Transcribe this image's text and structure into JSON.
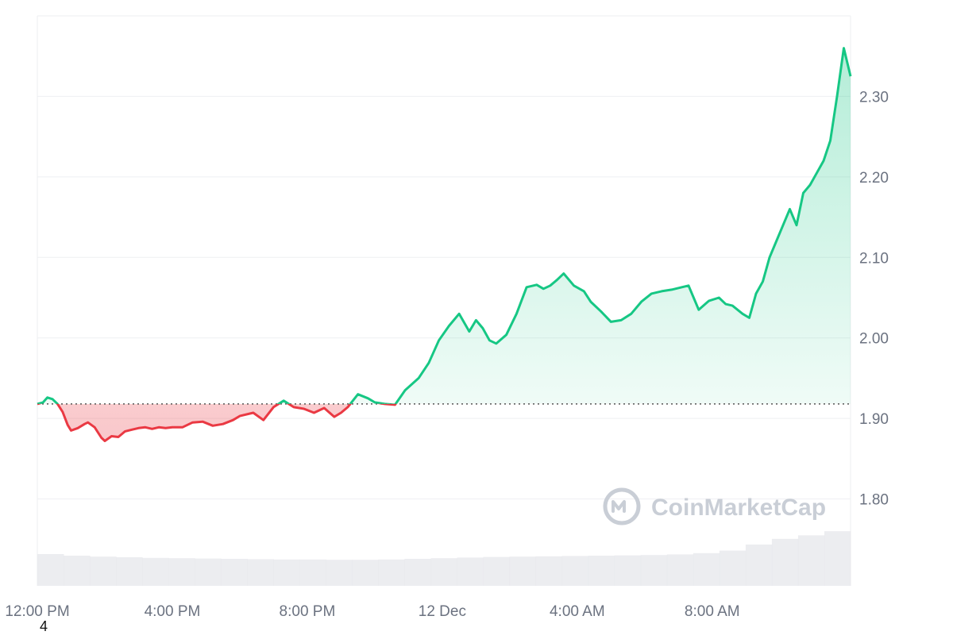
{
  "chart_data": {
    "type": "area",
    "title": "",
    "xlabel": "",
    "ylabel": "",
    "ylim": [
      1.7,
      2.4
    ],
    "y_ticks": [
      "1.80",
      "1.90",
      "2.00",
      "2.10",
      "2.20",
      "2.30"
    ],
    "y_tick_values": [
      1.8,
      1.9,
      2.0,
      2.1,
      2.2,
      2.3
    ],
    "x_tick_labels": [
      "12:00 PM",
      "4:00 PM",
      "8:00 PM",
      "12 Dec",
      "4:00 AM",
      "8:00 AM"
    ],
    "x_tick_hours": [
      0,
      4,
      8,
      12,
      16,
      20
    ],
    "x_range_hours": [
      0,
      24.1
    ],
    "baseline": 1.918,
    "grid": true,
    "series": [
      {
        "hours": [
          0,
          0.17,
          0.3,
          0.45,
          0.6,
          0.75,
          0.9,
          1.0,
          1.2,
          1.4,
          1.5,
          1.7,
          1.9,
          2.0,
          2.2,
          2.4,
          2.6,
          2.8,
          3.0,
          3.2,
          3.4,
          3.6,
          3.8,
          4.0,
          4.3,
          4.6,
          4.9,
          5.2,
          5.5,
          5.8,
          6.0,
          6.4,
          6.7,
          7.0,
          7.3,
          7.6,
          7.9,
          8.2,
          8.5,
          8.8,
          9.0,
          9.2,
          9.5,
          9.8,
          10.0,
          10.3,
          10.6,
          10.9,
          11.3,
          11.6,
          11.9,
          12.2,
          12.5,
          12.8,
          13.0,
          13.2,
          13.4,
          13.6,
          13.9,
          14.2,
          14.5,
          14.8,
          15.0,
          15.2,
          15.4,
          15.6,
          15.9,
          16.2,
          16.4,
          16.7,
          17.0,
          17.3,
          17.6,
          17.9,
          18.2,
          18.5,
          18.8,
          19.1,
          19.3,
          19.6,
          19.9,
          20.2,
          20.4,
          20.6,
          20.9,
          21.1,
          21.3,
          21.5,
          21.7,
          21.9,
          22.1,
          22.3,
          22.5,
          22.7,
          22.9,
          23.1,
          23.3,
          23.5,
          23.7,
          23.9,
          24.1
        ],
        "values": [
          1.918,
          1.92,
          1.926,
          1.924,
          1.918,
          1.908,
          1.892,
          1.885,
          1.888,
          1.893,
          1.895,
          1.889,
          1.876,
          1.872,
          1.878,
          1.877,
          1.884,
          1.886,
          1.888,
          1.889,
          1.887,
          1.889,
          1.888,
          1.889,
          1.889,
          1.895,
          1.896,
          1.891,
          1.893,
          1.898,
          1.903,
          1.907,
          1.898,
          1.914,
          1.922,
          1.914,
          1.912,
          1.907,
          1.913,
          1.902,
          1.907,
          1.914,
          1.93,
          1.925,
          1.92,
          1.918,
          1.917,
          1.935,
          1.95,
          1.969,
          1.997,
          2.015,
          2.03,
          2.008,
          2.022,
          2.012,
          1.997,
          1.993,
          2.004,
          2.03,
          2.063,
          2.066,
          2.061,
          2.065,
          2.072,
          2.08,
          2.065,
          2.058,
          2.045,
          2.033,
          2.02,
          2.022,
          2.03,
          2.045,
          2.055,
          2.058,
          2.06,
          2.063,
          2.065,
          2.035,
          2.046,
          2.05,
          2.042,
          2.04,
          2.03,
          2.025,
          2.055,
          2.07,
          2.1,
          2.12,
          2.14,
          2.16,
          2.14,
          2.18,
          2.19,
          2.205,
          2.22,
          2.245,
          2.3,
          2.36,
          2.325
        ]
      }
    ],
    "volume_series": [
      0.1,
      0.095,
      0.092,
      0.09,
      0.088,
      0.087,
      0.086,
      0.085,
      0.084,
      0.083,
      0.083,
      0.082,
      0.082,
      0.083,
      0.085,
      0.087,
      0.089,
      0.091,
      0.092,
      0.093,
      0.094,
      0.095,
      0.096,
      0.097,
      0.099,
      0.103,
      0.111,
      0.13,
      0.148,
      0.159,
      0.172
    ],
    "colors": {
      "up": "#16c784",
      "down": "#ea3943",
      "grid": "#eeeff2",
      "axis_text": "#6b7280",
      "volume": "#e5e7eb"
    }
  },
  "watermark": {
    "text": "CoinMarketCap",
    "icon": "coinmarketcap-logo-icon"
  },
  "corner_label": "4"
}
